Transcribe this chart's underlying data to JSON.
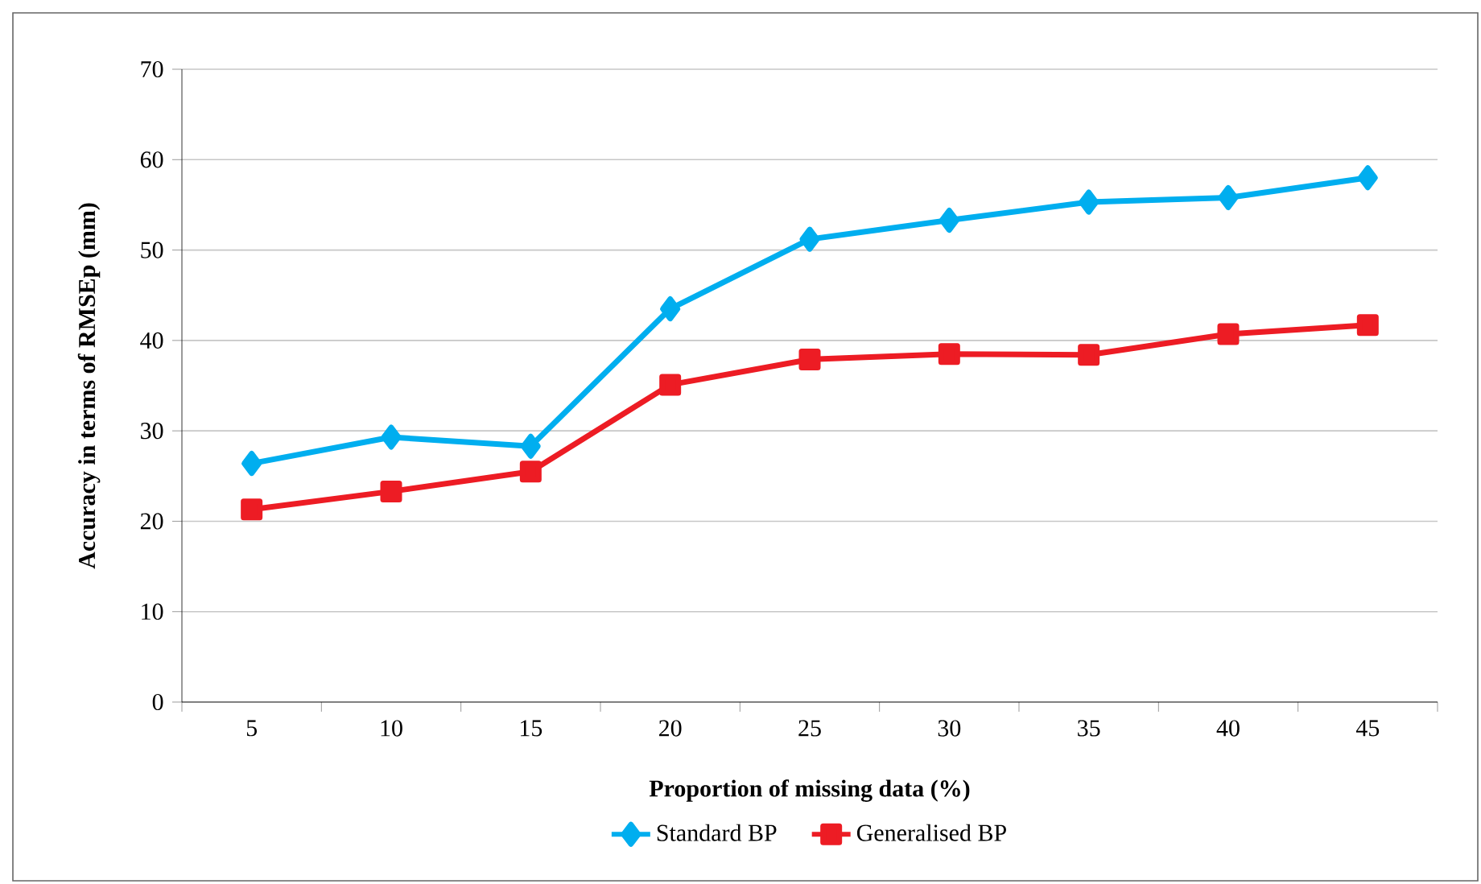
{
  "chart_data": {
    "type": "line",
    "xlabel": "Proportion of missing data (%)",
    "ylabel": "Accuracy in terms of RMSEp (mm)",
    "categories": [
      "5",
      "10",
      "15",
      "20",
      "25",
      "30",
      "35",
      "40",
      "45"
    ],
    "series": [
      {
        "name": "Standard BP",
        "color": "#00aeef",
        "marker": "diamond",
        "values": [
          26.4,
          29.3,
          28.3,
          43.5,
          51.2,
          53.3,
          55.3,
          55.8,
          58.0
        ]
      },
      {
        "name": "Generalised BP",
        "color": "#ed1c24",
        "marker": "square",
        "values": [
          21.3,
          23.3,
          25.5,
          35.1,
          37.9,
          38.5,
          38.4,
          40.7,
          41.7
        ]
      }
    ],
    "ylim": [
      0,
      70
    ],
    "yticks": [
      0,
      10,
      20,
      30,
      40,
      50,
      60,
      70
    ],
    "grid": "y",
    "legend": "bottom",
    "line_style": "solid"
  }
}
